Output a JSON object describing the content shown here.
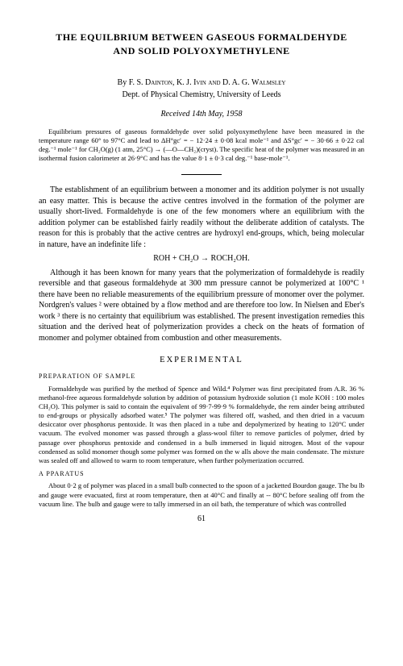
{
  "title_line1": "THE EQUILBRIUM BETWEEN GASEOUS FORMALDEHYDE",
  "title_line2": "AND SOLID POLYOXYMETHYLENE",
  "authors_prefix": "By ",
  "authors": "F. S. Dainton, K. J. Ivin and D. A. G. Walmsley",
  "dept": "Dept. of Physical Chemistry, University of Leeds",
  "received": "Received 14th May, 1958",
  "abstract": "Equilibrium pressures of gaseous formaldehyde over solid polyoxymethylene have been measured in the temperature range 60° to 97°C and lead to ΔH°gc′ = − 12·24 ± 0·08 kcal mole⁻¹ and ΔS°gc′ = − 30·66 ± 0·22 cal deg.⁻¹ mole⁻¹ for CH₂O(g) (1 atm, 25°C) → (—O—CH₂)(cryst). The specific heat of the polymer was measured in an isothermal fusion calorimeter at 26·9°C and has the value 8·1 ± 0·3 cal deg.⁻¹ base-mole⁻¹.",
  "para1": "The establishment of an equilibrium between a monomer and its addition polymer is not usually an easy matter. This is because the active centres involved in the formation of the polymer are usually short-lived. Formaldehyde is one of the few monomers where an equilibrium with the addition polymer can be established fairly readily without the deliberate addition of catalysts. The reason for this is probably that the active centres are hydroxyl end-groups, which, being molecular in nature, have an indefinite life :",
  "equation": "ROH + CH₂O → ROCH₂OH.",
  "para2": "Although it has been known for many years that the polymerization of formaldehyde is readily reversible and that gaseous formaldehyde at 300 mm pressure cannot be polymerized at 100°C ¹ there have been no reliable measurements of the equilibrium pressure of monomer over the polymer. Nordgren's values ² were obtained by a flow method and are therefore too low. In Nielsen and Eber's work ³ there is no certainty that equilibrium was established. The present investigation remedies this situation and the derived heat of polymerization provides a check on the heats of formation of monomer and polymer obtained from combustion and other measurements.",
  "section_experimental": "EXPERIMENTAL",
  "subsection_prep": "PREPARATION OF SAMPLE",
  "prep_para": "Formaldehyde was purified by the method of Spence and Wild.⁴ Polymer was first precipitated from A.R. 36 % methanol-free aqueous formaldehyde solution by addition of potassium hydroxide solution (1 mole KOH : 100 moles CH₂O). This polymer is said to contain the equivalent of 99·7-99·9 % formaldehyde, the rem ainder being attributed to end-groups or physically adsorbed water.⁵ The polymer was filtered off, washed, and then dried in a vacuum desiccator over phosphorus pentoxide. It was then placed in a tube and depolymerized by heating to 120°C under vacuum. The evolved monomer was passed through a glass-wool filter to remove particles of polymer, dried by passage over phosphorus pentoxide and condensed in a bulb immersed in liquid nitrogen. Most of the vapour condensed as solid monomer though some polymer was formed on the w alls above the main condensate. The mixture was sealed off and allowed to warm to room temperature, when further polymerization occurred.",
  "subsection_app": "A PPARATUS",
  "app_para": "About 0·2 g of polymer was placed in a small bulb connected to the spoon of a jacketted Bourdon gauge. The bu lb and gauge were evacuated, first at room temperature, then at 40°C and finally at -- 80°C before sealing off from the vacuum line. The bulb and gauge were to tally immersed in an oil bath, the temperature of which was controlled",
  "page_num": "61"
}
